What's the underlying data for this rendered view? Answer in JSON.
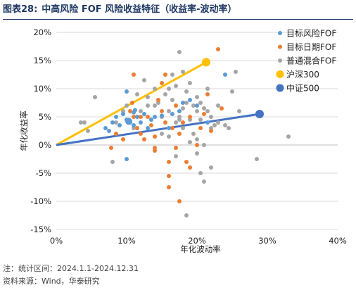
{
  "header": {
    "number": "图表28:",
    "title": "中高风险 FOF 风险收益特征（收益率-波动率）"
  },
  "notes": {
    "period": "注：统计区间：2024.1.1-2024.12.31",
    "source": "资料来源：Wind，华泰研究"
  },
  "chart_data": {
    "type": "scatter",
    "xlabel": "年化波动率",
    "ylabel": "年化收益率",
    "xlim": [
      0,
      0.4
    ],
    "ylim": [
      -0.15,
      0.2
    ],
    "xticks": [
      0,
      0.1,
      0.2,
      0.3,
      0.4
    ],
    "xtick_labels": [
      "0%",
      "10%",
      "20%",
      "30%",
      "40%"
    ],
    "yticks": [
      -0.15,
      -0.1,
      -0.05,
      0,
      0.05,
      0.1,
      0.15,
      0.2
    ],
    "ytick_labels": [
      "-15%",
      "-10%",
      "-5%",
      "0%",
      "5%",
      "10%",
      "15%",
      "20%"
    ],
    "grid": "horizontal",
    "legend_position": "top-right",
    "series": [
      {
        "name": "目标风险FOF",
        "color": "#5b9bd5",
        "points": [
          [
            0.07,
            0.03
          ],
          [
            0.075,
            0.025
          ],
          [
            0.08,
            0.04
          ],
          [
            0.085,
            0.05
          ],
          [
            0.09,
            0.035
          ],
          [
            0.095,
            0.055
          ],
          [
            0.1,
            0.045
          ],
          [
            0.1,
            0.095
          ],
          [
            0.105,
            0.04
          ],
          [
            0.11,
            0.035
          ],
          [
            0.112,
            0.062
          ],
          [
            0.115,
            0.05
          ],
          [
            0.12,
            0.04
          ],
          [
            0.125,
            0.055
          ],
          [
            0.13,
            0.03
          ],
          [
            0.14,
            0.05
          ],
          [
            0.15,
            0.052
          ],
          [
            0.16,
            0.03
          ],
          [
            0.165,
            0.055
          ],
          [
            0.175,
            0.06
          ],
          [
            0.18,
            0.075
          ],
          [
            0.19,
            0.08
          ],
          [
            0.2,
            0.07
          ],
          [
            0.215,
            0.04
          ],
          [
            0.24,
            0.125
          ],
          [
            0.1,
            -0.025
          ],
          [
            0.11,
            0.058
          ],
          [
            0.135,
            0.045
          ]
        ],
        "highlight": [
          [
            0.103,
            0.042
          ]
        ]
      },
      {
        "name": "目标日期FOF",
        "color": "#ed7d31",
        "points": [
          [
            0.078,
            -0.005
          ],
          [
            0.085,
            0.02
          ],
          [
            0.095,
            0.01
          ],
          [
            0.105,
            0.06
          ],
          [
            0.108,
            0.075
          ],
          [
            0.11,
            0.125
          ],
          [
            0.115,
            0.03
          ],
          [
            0.12,
            0.02
          ],
          [
            0.125,
            0.01
          ],
          [
            0.13,
            0.05
          ],
          [
            0.135,
            0.035
          ],
          [
            0.14,
            0.015
          ],
          [
            0.14,
            -0.01
          ],
          [
            0.145,
            0.08
          ],
          [
            0.15,
            0.11
          ],
          [
            0.15,
            0.06
          ],
          [
            0.155,
            0.04
          ],
          [
            0.16,
            -0.03
          ],
          [
            0.16,
            -0.075
          ],
          [
            0.165,
            0.03
          ],
          [
            0.17,
            0.07
          ],
          [
            0.175,
            0.02
          ],
          [
            0.18,
            0.04
          ],
          [
            0.185,
            -0.03
          ],
          [
            0.19,
            0.05
          ],
          [
            0.19,
            -0.04
          ],
          [
            0.2,
            0.0
          ],
          [
            0.205,
            0.03
          ],
          [
            0.21,
            0.055
          ],
          [
            0.215,
            0.09
          ],
          [
            0.22,
            0.025
          ],
          [
            0.23,
            0.17
          ],
          [
            0.235,
            0.065
          ],
          [
            0.16,
            -0.055
          ],
          [
            0.17,
            -0.005
          ],
          [
            0.175,
            -0.1
          ],
          [
            0.155,
            0.125
          ],
          [
            0.14,
            -0.005
          ],
          [
            0.11,
            0.05
          ],
          [
            0.12,
            0.05
          ]
        ]
      },
      {
        "name": "普通混合FOF",
        "color": "#a5a5a5",
        "points": [
          [
            0.035,
            0.04
          ],
          [
            0.04,
            0.04
          ],
          [
            0.045,
            0.025
          ],
          [
            0.055,
            0.085
          ],
          [
            0.08,
            -0.03
          ],
          [
            0.085,
            0.04
          ],
          [
            0.095,
            0.06
          ],
          [
            0.1,
            0.07
          ],
          [
            0.11,
            0.03
          ],
          [
            0.115,
            0.09
          ],
          [
            0.12,
            0.06
          ],
          [
            0.125,
            0.115
          ],
          [
            0.13,
            0.07
          ],
          [
            0.135,
            0.045
          ],
          [
            0.14,
            0.1
          ],
          [
            0.145,
            0.075
          ],
          [
            0.15,
            0.05
          ],
          [
            0.15,
            0.02
          ],
          [
            0.155,
            0.09
          ],
          [
            0.16,
            0.06
          ],
          [
            0.16,
            0.015
          ],
          [
            0.165,
            0.08
          ],
          [
            0.17,
            0.04
          ],
          [
            0.17,
            0.105
          ],
          [
            0.175,
            0.05
          ],
          [
            0.18,
            0.065
          ],
          [
            0.18,
            0.03
          ],
          [
            0.185,
            0.095
          ],
          [
            0.19,
            0.11
          ],
          [
            0.19,
            0.045
          ],
          [
            0.195,
            0.07
          ],
          [
            0.195,
            0.02
          ],
          [
            0.2,
            0.06
          ],
          [
            0.2,
            0.01
          ],
          [
            0.205,
            0.075
          ],
          [
            0.205,
            0.045
          ],
          [
            0.21,
            0.065
          ],
          [
            0.21,
            0.0
          ],
          [
            0.215,
            0.06
          ],
          [
            0.22,
            0.05
          ],
          [
            0.22,
            0.03
          ],
          [
            0.225,
            0.035
          ],
          [
            0.23,
            0.07
          ],
          [
            0.23,
            0.04
          ],
          [
            0.24,
            0.035
          ],
          [
            0.245,
            0.03
          ],
          [
            0.25,
            0.095
          ],
          [
            0.255,
            0.13
          ],
          [
            0.26,
            0.06
          ],
          [
            0.175,
            0.165
          ],
          [
            0.185,
            -0.125
          ],
          [
            0.205,
            -0.05
          ],
          [
            0.21,
            -0.065
          ],
          [
            0.22,
            -0.04
          ],
          [
            0.18,
            0.13
          ],
          [
            0.165,
            0.125
          ],
          [
            0.14,
            0.07
          ],
          [
            0.19,
            0.005
          ],
          [
            0.2,
            -0.015
          ],
          [
            0.17,
            -0.02
          ],
          [
            0.285,
            -0.025
          ],
          [
            0.33,
            0.015
          ],
          [
            0.16,
            0.1
          ],
          [
            0.13,
            0.085
          ],
          [
            0.185,
            0.075
          ],
          [
            0.175,
            0.045
          ],
          [
            0.2,
            0.085
          ],
          [
            0.215,
            0.1
          ]
        ]
      }
    ],
    "benchmarks": [
      {
        "name": "沪深300",
        "color": "#ffc000",
        "point": [
          0.213,
          0.147
        ],
        "line_from": [
          0,
          0
        ]
      },
      {
        "name": "中证500",
        "color": "#4472c4",
        "point": [
          0.289,
          0.055
        ],
        "line_from": [
          0,
          0
        ]
      }
    ]
  }
}
